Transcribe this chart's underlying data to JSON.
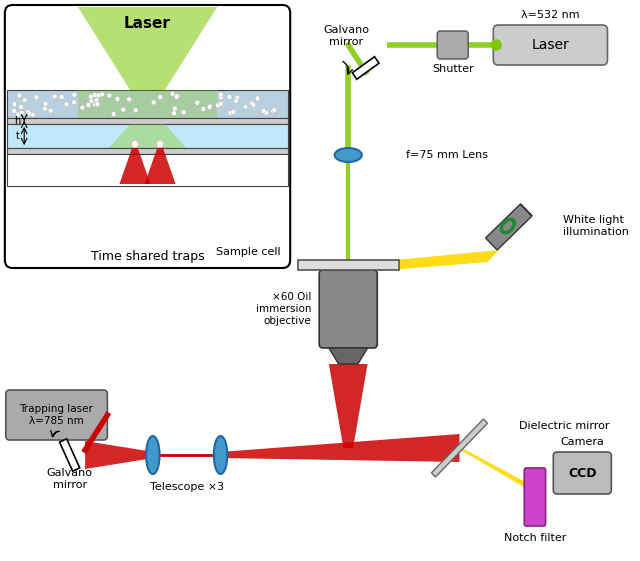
{
  "bg_color": "#ffffff",
  "inset_caption": "Time shared traps",
  "inset_title": "Laser",
  "green_laser_color": "#90d020",
  "inset_green_color": "#7dc700",
  "red_laser_color": "#cc0000",
  "yellow_color": "#ffd700",
  "blue_lens_color": "#4499cc",
  "gray_component": "#888888",
  "dark_gray": "#555555",
  "magenta_filter": "#cc44cc",
  "turbid_color": "#b8cfe0",
  "water_color": "#c0e8f8",
  "glass_color": "#cccccc",
  "labels": {
    "lambda_532": "λ=532 nm",
    "laser_box": "Laser",
    "galvano_top": "Galvano\nmirror",
    "shutter": "Shutter",
    "lens": "f=75 mm Lens",
    "white_light": "White light\nillumination",
    "sample_cell": "Sample cell",
    "objective": "×60 Oil\nimmersion\nobjective",
    "dielectric": "Dielectric mirror",
    "telescope": "Telescope ×3",
    "galvano_bot": "Galvano\nmirror",
    "trapping_laser": "Trapping laser\nλ=785 nm",
    "notch_filter": "Notch filter",
    "camera": "Camera",
    "ccd": "CCD",
    "h": "h",
    "t": "t"
  }
}
